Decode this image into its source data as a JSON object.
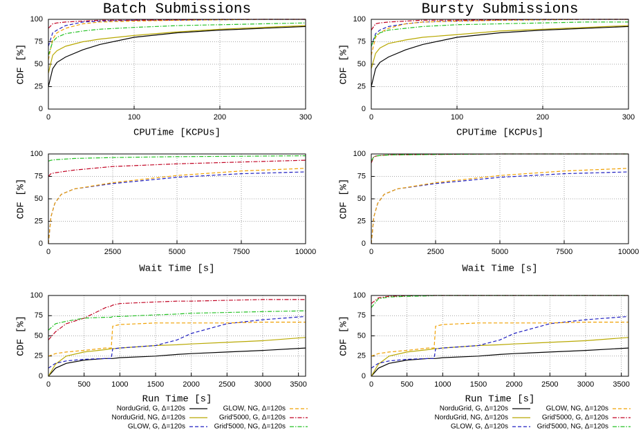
{
  "chart_data": [
    {
      "type": "line",
      "title": "Batch Submissions",
      "grid": true,
      "series": [
        {
          "name": "NorduGrid, G, Δ=120s",
          "color": "#000000",
          "dash": "solid"
        },
        {
          "name": "NorduGrid, NG, Δ=120s",
          "color": "#b8a800",
          "dash": "solid"
        },
        {
          "name": "GLOW, G, Δ=120s",
          "color": "#1c1cc0",
          "dash": "dashed"
        },
        {
          "name": "GLOW, NG, Δ=120s",
          "color": "#f0a000",
          "dash": "dashed"
        },
        {
          "name": "Grid'5000, G, Δ=120s",
          "color": "#c00020",
          "dash": "dashdot"
        },
        {
          "name": "Grid'5000, NG, Δ=120s",
          "color": "#20c020",
          "dash": "dashdot"
        }
      ],
      "panels": [
        {
          "xlabel": "CPUTime [KCPUs]",
          "ylabel": "CDF [%]",
          "xlim": [
            0,
            300
          ],
          "xticks": [
            0,
            100,
            200,
            300
          ],
          "ylim": [
            0,
            100
          ],
          "yticks": [
            0,
            25,
            50,
            75,
            100
          ],
          "x": [
            0,
            5,
            10,
            20,
            40,
            60,
            100,
            150,
            200,
            250,
            300
          ],
          "lines": [
            {
              "values": [
                25,
                45,
                52,
                58,
                66,
                72,
                80,
                85,
                88,
                90,
                92
              ]
            },
            {
              "values": [
                40,
                60,
                65,
                70,
                75,
                78,
                82,
                86,
                89,
                91,
                93
              ]
            },
            {
              "values": [
                70,
                85,
                88,
                93,
                97,
                98,
                99,
                99,
                99.5,
                100,
                100
              ]
            },
            {
              "values": [
                55,
                78,
                85,
                90,
                95,
                97,
                98,
                99,
                99.5,
                100,
                100
              ]
            },
            {
              "values": [
                90,
                95,
                96,
                97,
                98,
                99,
                99,
                99.5,
                100,
                100,
                100
              ]
            },
            {
              "values": [
                60,
                75,
                80,
                84,
                87,
                89,
                91,
                93,
                94,
                95,
                96
              ]
            }
          ]
        },
        {
          "xlabel": "Wait Time [s]",
          "ylabel": "CDF [%]",
          "xlim": [
            0,
            10000
          ],
          "xticks": [
            0,
            2500,
            5000,
            7500,
            10000
          ],
          "ylim": [
            0,
            100
          ],
          "yticks": [
            0,
            25,
            50,
            75,
            100
          ],
          "x": [
            0,
            100,
            250,
            500,
            750,
            1000,
            2500,
            5000,
            7500,
            10000
          ],
          "lines": [
            {
              "values": []
            },
            {
              "values": []
            },
            {
              "values": [
                0,
                30,
                45,
                55,
                58,
                61,
                67,
                74,
                78,
                80
              ]
            },
            {
              "values": [
                0,
                30,
                45,
                55,
                58,
                61,
                68,
                76,
                81,
                84
              ]
            },
            {
              "values": [
                75,
                78,
                79,
                80,
                81,
                82,
                86,
                89,
                91,
                93
              ]
            },
            {
              "values": [
                92,
                93,
                93.5,
                94,
                94.5,
                95,
                96,
                97,
                97.5,
                98
              ]
            }
          ]
        },
        {
          "xlabel": "Run Time [s]",
          "ylabel": "CDF [%]",
          "xlim": [
            0,
            3600
          ],
          "xticks": [
            0,
            500,
            1000,
            1500,
            2000,
            2500,
            3000,
            3500
          ],
          "ylim": [
            0,
            100
          ],
          "yticks": [
            0,
            25,
            50,
            75,
            100
          ],
          "x": [
            0,
            100,
            250,
            500,
            800,
            880,
            900,
            1000,
            1500,
            1800,
            2000,
            2500,
            3000,
            3600
          ],
          "lines": [
            {
              "values": [
                0,
                10,
                16,
                20,
                22,
                22,
                22,
                23,
                25,
                27,
                28,
                30,
                32,
                35
              ]
            },
            {
              "values": [
                0,
                15,
                25,
                30,
                33,
                34,
                34,
                35,
                38,
                39,
                40,
                42,
                44,
                48
              ]
            },
            {
              "values": [
                10,
                16,
                19,
                21,
                22,
                22,
                34,
                35,
                38,
                45,
                53,
                65,
                70,
                74
              ]
            },
            {
              "values": [
                25,
                28,
                30,
                32,
                35,
                35,
                62,
                64,
                66,
                66,
                66,
                66,
                67,
                67
              ]
            },
            {
              "values": [
                45,
                55,
                65,
                72,
                85,
                87,
                88,
                90,
                92,
                93,
                93,
                94,
                95,
                95
              ]
            },
            {
              "values": [
                57,
                65,
                68,
                72,
                73,
                73,
                74,
                74,
                76,
                77,
                78,
                79,
                80,
                81
              ]
            }
          ]
        }
      ]
    },
    {
      "type": "line",
      "title": "Bursty Submissions",
      "grid": true,
      "series": [
        {
          "name": "NorduGrid, G, Δ=120s",
          "color": "#000000",
          "dash": "solid"
        },
        {
          "name": "NorduGrid, NG, Δ=120s",
          "color": "#b8a800",
          "dash": "solid"
        },
        {
          "name": "GLOW, G, Δ=120s",
          "color": "#1c1cc0",
          "dash": "dashed"
        },
        {
          "name": "GLOW, NG, Δ=120s",
          "color": "#f0a000",
          "dash": "dashed"
        },
        {
          "name": "Grid'5000, G, Δ=120s",
          "color": "#c00020",
          "dash": "dashdot"
        },
        {
          "name": "Grid'5000, NG, Δ=120s",
          "color": "#20c020",
          "dash": "dashdot"
        }
      ],
      "panels": [
        {
          "xlabel": "CPUTime [KCPUs]",
          "ylabel": "CDF [%]",
          "xlim": [
            0,
            300
          ],
          "xticks": [
            0,
            100,
            200,
            300
          ],
          "ylim": [
            0,
            100
          ],
          "yticks": [
            0,
            25,
            50,
            75,
            100
          ],
          "x": [
            0,
            5,
            10,
            20,
            40,
            60,
            100,
            150,
            200,
            250,
            300
          ],
          "lines": [
            {
              "values": [
                25,
                45,
                52,
                58,
                66,
                72,
                80,
                85,
                88,
                90,
                92
              ]
            },
            {
              "values": [
                45,
                62,
                68,
                73,
                77,
                80,
                83,
                87,
                89,
                91,
                93
              ]
            },
            {
              "values": [
                70,
                84,
                88,
                92,
                95,
                97,
                98,
                99,
                99.5,
                100,
                100
              ]
            },
            {
              "values": [
                60,
                80,
                85,
                90,
                95,
                97,
                98,
                99,
                99.5,
                100,
                100
              ]
            },
            {
              "values": [
                88,
                95,
                96,
                97,
                98,
                99,
                99,
                99.5,
                100,
                100,
                100
              ]
            },
            {
              "values": [
                70,
                82,
                85,
                88,
                90,
                92,
                94,
                95,
                96,
                97,
                97
              ]
            }
          ]
        },
        {
          "xlabel": "Wait Time [s]",
          "ylabel": "CDF [%]",
          "xlim": [
            0,
            10000
          ],
          "xticks": [
            0,
            2500,
            5000,
            7500,
            10000
          ],
          "ylim": [
            0,
            100
          ],
          "yticks": [
            0,
            25,
            50,
            75,
            100
          ],
          "x": [
            0,
            100,
            250,
            500,
            750,
            1000,
            2500,
            5000,
            7500,
            10000
          ],
          "lines": [
            {
              "values": []
            },
            {
              "values": []
            },
            {
              "values": [
                0,
                30,
                45,
                55,
                58,
                61,
                67,
                74,
                78,
                80
              ]
            },
            {
              "values": [
                0,
                30,
                45,
                55,
                58,
                61,
                68,
                76,
                81,
                84
              ]
            },
            {
              "values": [
                90,
                97,
                98,
                98.5,
                99,
                99,
                99.5,
                100,
                100,
                100
              ]
            },
            {
              "values": [
                92,
                97,
                98,
                98.5,
                99,
                99,
                99.5,
                100,
                100,
                100
              ]
            }
          ]
        },
        {
          "xlabel": "Run Time [s]",
          "ylabel": "CDF [%]",
          "xlim": [
            0,
            3600
          ],
          "xticks": [
            0,
            500,
            1000,
            1500,
            2000,
            2500,
            3000,
            3500
          ],
          "ylim": [
            0,
            100
          ],
          "yticks": [
            0,
            25,
            50,
            75,
            100
          ],
          "x": [
            0,
            100,
            250,
            500,
            800,
            880,
            900,
            1000,
            1500,
            1800,
            2000,
            2500,
            3000,
            3600
          ],
          "lines": [
            {
              "values": [
                0,
                10,
                16,
                20,
                22,
                22,
                22,
                23,
                25,
                27,
                28,
                30,
                32,
                35
              ]
            },
            {
              "values": [
                0,
                15,
                25,
                30,
                33,
                34,
                34,
                35,
                38,
                39,
                40,
                42,
                44,
                48
              ]
            },
            {
              "values": [
                10,
                16,
                19,
                21,
                22,
                22,
                34,
                35,
                38,
                45,
                53,
                65,
                70,
                74
              ]
            },
            {
              "values": [
                25,
                28,
                30,
                32,
                35,
                35,
                62,
                64,
                66,
                66,
                66,
                66,
                67,
                67
              ]
            },
            {
              "values": [
                90,
                97,
                99,
                99.5,
                100,
                100,
                100,
                100,
                100,
                100,
                100,
                100,
                100,
                100
              ]
            },
            {
              "values": [
                85,
                96,
                98,
                99,
                99.5,
                100,
                100,
                100,
                100,
                100,
                100,
                100,
                100,
                100
              ]
            }
          ]
        }
      ]
    }
  ]
}
